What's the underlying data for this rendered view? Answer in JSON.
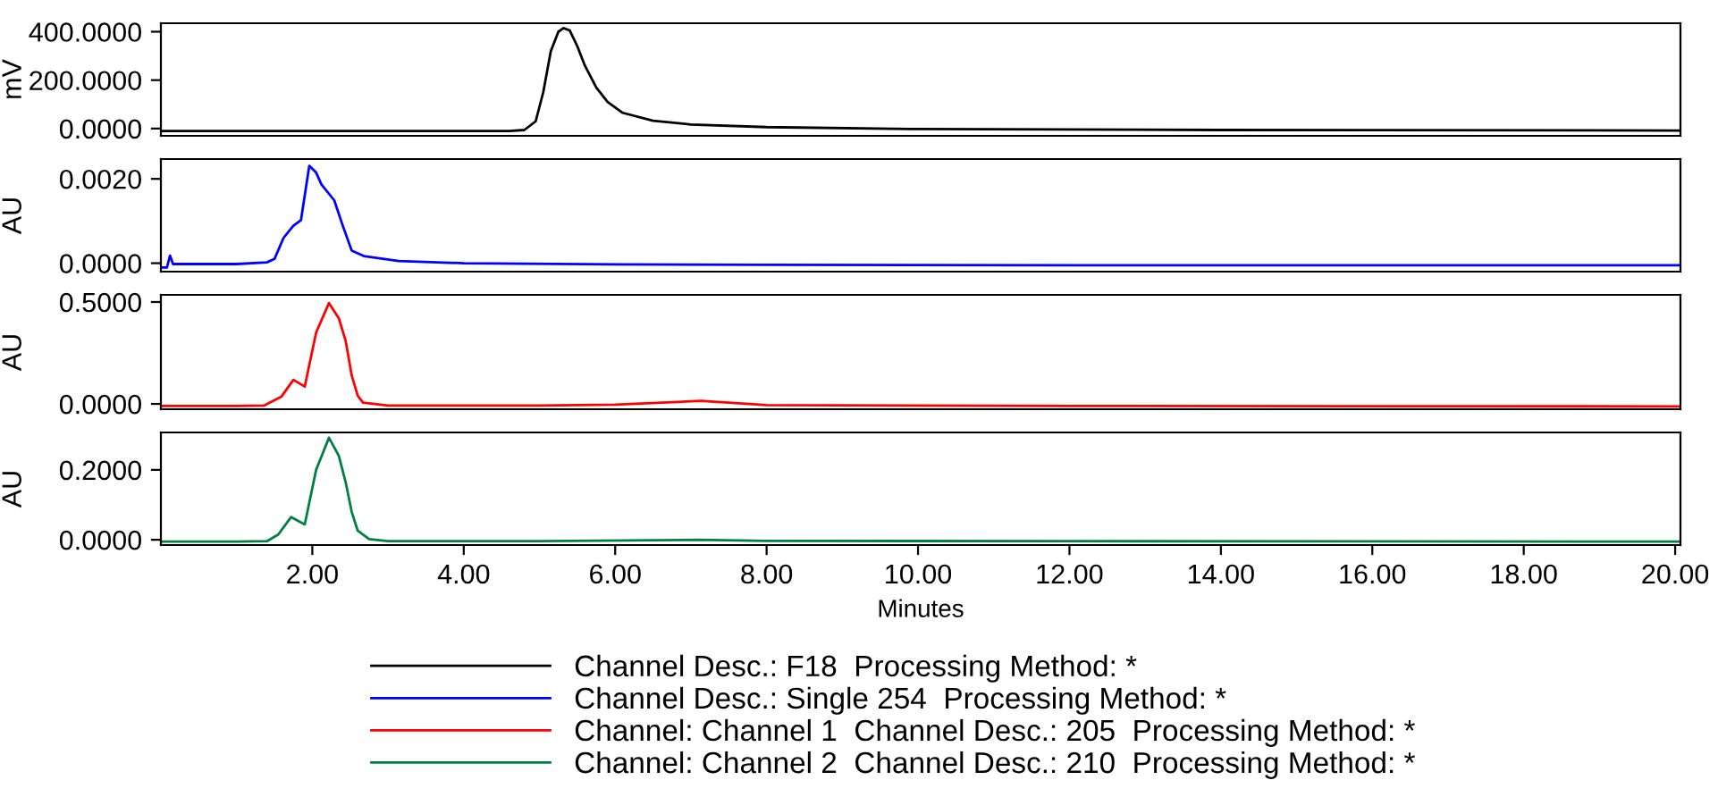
{
  "chart_data": [
    {
      "type": "line",
      "ylabel": "mV",
      "xlim": [
        0,
        20.07
      ],
      "ylim": [
        -30,
        435
      ],
      "yticks": [
        {
          "value": 0,
          "label": "0.0000"
        },
        {
          "value": 200,
          "label": "200.0000"
        },
        {
          "value": 400,
          "label": "400.0000"
        }
      ],
      "tick_labels": "y",
      "grid": false,
      "legend": "bottom",
      "series": [
        {
          "name": "Channel Desc.: F18  Processing Method: *",
          "color": "#000000",
          "x": [
            0,
            2,
            4,
            4.6,
            4.8,
            4.95,
            5.05,
            5.15,
            5.25,
            5.32,
            5.4,
            5.5,
            5.6,
            5.75,
            5.9,
            6.1,
            6.5,
            7.0,
            8.0,
            10,
            14,
            20.07
          ],
          "values": [
            -10,
            -10,
            -10,
            -10,
            -6,
            30,
            150,
            320,
            400,
            415,
            405,
            340,
            260,
            170,
            110,
            65,
            32,
            17,
            6,
            -2,
            -6,
            -8
          ]
        }
      ]
    },
    {
      "type": "line",
      "ylabel": "AU",
      "xlim": [
        0,
        20.07
      ],
      "ylim": [
        -0.0002,
        0.00247
      ],
      "yticks": [
        {
          "value": 0,
          "label": "0.0000"
        },
        {
          "value": 0.002,
          "label": "0.0020"
        }
      ],
      "tick_labels": "y",
      "grid": false,
      "legend": "bottom",
      "series": [
        {
          "name": "Channel Desc.: Single 254  Processing Method: *",
          "color": "#0000ff",
          "x": [
            0.02,
            0.08,
            0.12,
            0.16,
            0.25,
            1.0,
            1.4,
            1.5,
            1.62,
            1.75,
            1.85,
            1.96,
            2.05,
            2.12,
            2.29,
            2.4,
            2.52,
            2.68,
            3.14,
            4,
            6,
            8,
            12,
            16,
            20.07
          ],
          "values": [
            -0.0001,
            -0.0001,
            0.00018,
            -2e-05,
            -2e-05,
            -2e-05,
            2e-05,
            0.0001,
            0.0006,
            0.00089,
            0.00102,
            0.00231,
            0.00215,
            0.00187,
            0.00149,
            0.0009,
            0.0003,
            0.00017,
            5e-05,
            0.0,
            -3e-05,
            -4e-05,
            -5e-05,
            -5e-05,
            -5e-05
          ]
        }
      ]
    },
    {
      "type": "line",
      "ylabel": "AU",
      "xlim": [
        0,
        20.07
      ],
      "ylim": [
        -0.026,
        0.535
      ],
      "yticks": [
        {
          "value": 0,
          "label": "0.0000"
        },
        {
          "value": 0.5,
          "label": "0.5000"
        }
      ],
      "tick_labels": "y",
      "grid": false,
      "legend": "bottom",
      "series": [
        {
          "name": "Channel: Channel 1  Channel Desc.: 205  Processing Method: *",
          "color": "#ff0000",
          "x": [
            0,
            1,
            1.36,
            1.59,
            1.75,
            1.9,
            2.05,
            2.22,
            2.35,
            2.44,
            2.52,
            2.6,
            2.67,
            3,
            5,
            6,
            7.13,
            8,
            12,
            20.07
          ],
          "values": [
            -0.01,
            -0.01,
            -0.008,
            0.035,
            0.118,
            0.085,
            0.35,
            0.495,
            0.42,
            0.31,
            0.14,
            0.04,
            0.006,
            -0.008,
            -0.008,
            -0.004,
            0.015,
            -0.006,
            -0.01,
            -0.012
          ]
        }
      ]
    },
    {
      "type": "line",
      "ylabel": "AU",
      "xlabel": "Minutes",
      "xlim": [
        0,
        20.07
      ],
      "ylim": [
        -0.015,
        0.307
      ],
      "yticks": [
        {
          "value": 0,
          "label": "0.0000"
        },
        {
          "value": 0.2,
          "label": "0.2000"
        }
      ],
      "xticks": [
        {
          "value": 2,
          "label": "2.00"
        },
        {
          "value": 4,
          "label": "4.00"
        },
        {
          "value": 6,
          "label": "6.00"
        },
        {
          "value": 8,
          "label": "8.00"
        },
        {
          "value": 10,
          "label": "10.00"
        },
        {
          "value": 12,
          "label": "12.00"
        },
        {
          "value": 14,
          "label": "14.00"
        },
        {
          "value": 16,
          "label": "16.00"
        },
        {
          "value": 18,
          "label": "18.00"
        },
        {
          "value": 20,
          "label": "20.00"
        }
      ],
      "grid": false,
      "legend": "bottom",
      "series": [
        {
          "name": "Channel: Channel 2  Channel Desc.: 210  Processing Method: *",
          "color": "#008040",
          "x": [
            0,
            1,
            1.4,
            1.55,
            1.72,
            1.9,
            2.05,
            2.22,
            2.35,
            2.44,
            2.52,
            2.6,
            2.75,
            3,
            5,
            7.1,
            8,
            12,
            20.07
          ],
          "values": [
            -0.005,
            -0.005,
            -0.004,
            0.015,
            0.065,
            0.044,
            0.2,
            0.292,
            0.24,
            0.165,
            0.08,
            0.026,
            0.002,
            -0.004,
            -0.004,
            0.0,
            -0.003,
            -0.004,
            -0.005
          ]
        }
      ]
    }
  ]
}
